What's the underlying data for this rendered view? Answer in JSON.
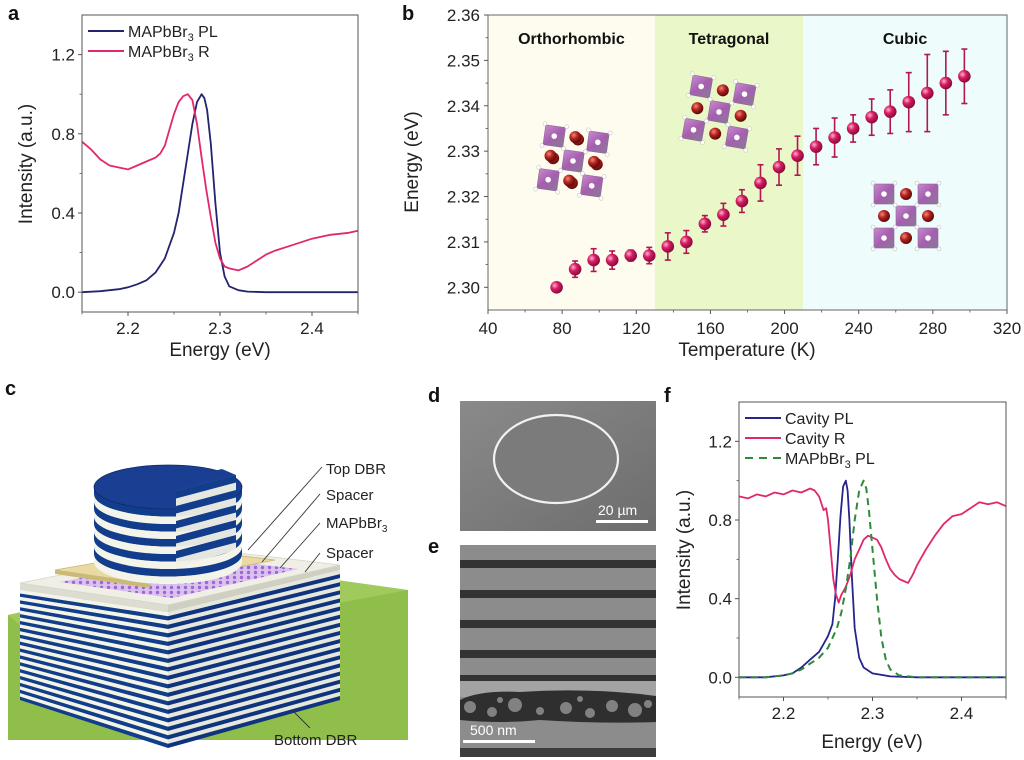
{
  "figure": {
    "panel_letters": [
      "a",
      "b",
      "c",
      "d",
      "e",
      "f"
    ]
  },
  "chart_data": [
    {
      "id": "a",
      "type": "line",
      "title": "",
      "xlabel": "Energy (eV)",
      "ylabel": "Intensity (a.u.)",
      "xlim": [
        2.15,
        2.45
      ],
      "ylim": [
        -0.1,
        1.4
      ],
      "xticks": [
        2.2,
        2.3,
        2.4
      ],
      "xtick_labels": [
        "2.2",
        "2.3",
        "2.4"
      ],
      "yticks": [
        0.0,
        0.4,
        0.8,
        1.2
      ],
      "ytick_labels": [
        "0.0",
        "0.4",
        "0.8",
        "1.2"
      ],
      "legend": {
        "position": "top-left",
        "entries": [
          {
            "label": "MAPbBr3 PL",
            "label_main": "MAPbBr",
            "label_sub": "3",
            "label_tail": " PL",
            "color": "#23236e",
            "style": "solid"
          },
          {
            "label": "MAPbBr3 R",
            "label_main": "MAPbBr",
            "label_sub": "3",
            "label_tail": " R",
            "color": "#e0286e",
            "style": "solid"
          }
        ]
      },
      "series": [
        {
          "name": "MAPbBr3 PL",
          "color": "#23236e",
          "style": "solid",
          "x": [
            2.15,
            2.17,
            2.19,
            2.2,
            2.21,
            2.22,
            2.23,
            2.24,
            2.25,
            2.255,
            2.26,
            2.265,
            2.27,
            2.275,
            2.28,
            2.283,
            2.286,
            2.29,
            2.295,
            2.3,
            2.305,
            2.31,
            2.32,
            2.33,
            2.35,
            2.4,
            2.45
          ],
          "y": [
            0.0,
            0.005,
            0.015,
            0.025,
            0.04,
            0.06,
            0.1,
            0.17,
            0.3,
            0.4,
            0.55,
            0.7,
            0.85,
            0.96,
            1.0,
            0.98,
            0.92,
            0.75,
            0.45,
            0.2,
            0.08,
            0.03,
            0.01,
            0.003,
            0.0,
            0.0,
            0.0
          ]
        },
        {
          "name": "MAPbBr3 R",
          "color": "#e0286e",
          "style": "solid",
          "x": [
            2.15,
            2.16,
            2.17,
            2.18,
            2.19,
            2.2,
            2.21,
            2.22,
            2.23,
            2.235,
            2.24,
            2.245,
            2.25,
            2.255,
            2.26,
            2.265,
            2.27,
            2.275,
            2.28,
            2.285,
            2.29,
            2.295,
            2.3,
            2.305,
            2.31,
            2.32,
            2.33,
            2.34,
            2.35,
            2.36,
            2.38,
            2.4,
            2.42,
            2.44,
            2.45
          ],
          "y": [
            0.76,
            0.72,
            0.67,
            0.64,
            0.63,
            0.62,
            0.64,
            0.66,
            0.68,
            0.7,
            0.74,
            0.82,
            0.9,
            0.96,
            0.99,
            1.0,
            0.97,
            0.85,
            0.68,
            0.52,
            0.38,
            0.25,
            0.17,
            0.13,
            0.12,
            0.11,
            0.13,
            0.16,
            0.19,
            0.21,
            0.24,
            0.27,
            0.29,
            0.3,
            0.31
          ]
        }
      ]
    },
    {
      "id": "b",
      "type": "scatter",
      "title": "",
      "xlabel": "Temperature (K)",
      "ylabel": "Energy (eV)",
      "xlim": [
        40,
        320
      ],
      "ylim": [
        2.295,
        2.36
      ],
      "xticks": [
        40,
        80,
        120,
        160,
        200,
        240,
        280,
        320
      ],
      "xtick_labels": [
        "40",
        "80",
        "120",
        "160",
        "200",
        "240",
        "280",
        "320"
      ],
      "yticks": [
        2.3,
        2.31,
        2.32,
        2.33,
        2.34,
        2.35,
        2.36
      ],
      "ytick_labels": [
        "2.30",
        "2.31",
        "2.32",
        "2.33",
        "2.34",
        "2.35",
        "2.36"
      ],
      "marker_color": "#d81b64",
      "phases": [
        {
          "label": "Orthorhombic",
          "range": [
            40,
            130
          ],
          "color": "#fdfcef"
        },
        {
          "label": "Tetragonal",
          "range": [
            130,
            210
          ],
          "color": "#eaf7c8"
        },
        {
          "label": "Cubic",
          "range": [
            210,
            320
          ],
          "color": "#eefcfc"
        }
      ],
      "series": [
        {
          "name": "Energy vs Temperature",
          "x": [
            77,
            87,
            97,
            107,
            117,
            127,
            137,
            147,
            157,
            167,
            177,
            187,
            197,
            207,
            217,
            227,
            237,
            247,
            257,
            267,
            277,
            287,
            297
          ],
          "y": [
            2.3,
            2.304,
            2.306,
            2.306,
            2.307,
            2.307,
            2.309,
            2.31,
            2.314,
            2.316,
            2.319,
            2.323,
            2.3265,
            2.329,
            2.331,
            2.333,
            2.335,
            2.3375,
            2.3387,
            2.3408,
            2.3428,
            2.345,
            2.3465
          ],
          "err": [
            0,
            0.0018,
            0.0025,
            0.002,
            0.0012,
            0.0018,
            0.003,
            0.0025,
            0.0018,
            0.0025,
            0.0025,
            0.004,
            0.004,
            0.0043,
            0.004,
            0.0043,
            0.003,
            0.004,
            0.0048,
            0.0065,
            0.0085,
            0.007,
            0.006
          ]
        }
      ],
      "insets": [
        {
          "label": "orthorhombic-structure",
          "phase": "Orthorhombic"
        },
        {
          "label": "tetragonal-structure",
          "phase": "Tetragonal"
        },
        {
          "label": "cubic-structure",
          "phase": "Cubic"
        }
      ]
    },
    {
      "id": "f",
      "type": "line",
      "title": "",
      "xlabel": "Energy (eV)",
      "ylabel": "Intensity (a.u.)",
      "xlim": [
        2.15,
        2.45
      ],
      "ylim": [
        -0.1,
        1.4
      ],
      "xticks": [
        2.2,
        2.3,
        2.4
      ],
      "xtick_labels": [
        "2.2",
        "2.3",
        "2.4"
      ],
      "yticks": [
        0.0,
        0.4,
        0.8,
        1.2
      ],
      "ytick_labels": [
        "0.0",
        "0.4",
        "0.8",
        "1.2"
      ],
      "legend": {
        "position": "top-left",
        "entries": [
          {
            "label": "Cavity PL",
            "label_main": "Cavity PL",
            "label_sub": "",
            "label_tail": "",
            "color": "#25258a",
            "style": "solid"
          },
          {
            "label": "Cavity R",
            "label_main": "Cavity R",
            "label_sub": "",
            "label_tail": "",
            "color": "#e0286e",
            "style": "solid"
          },
          {
            "label": "MAPbBr3 PL",
            "label_main": "MAPbBr",
            "label_sub": "3",
            "label_tail": " PL",
            "color": "#2e8b3a",
            "style": "dashed"
          }
        ]
      },
      "series": [
        {
          "name": "Cavity PL",
          "color": "#25258a",
          "style": "solid",
          "x": [
            2.15,
            2.18,
            2.2,
            2.21,
            2.22,
            2.23,
            2.24,
            2.245,
            2.25,
            2.255,
            2.258,
            2.261,
            2.264,
            2.267,
            2.27,
            2.272,
            2.274,
            2.277,
            2.28,
            2.285,
            2.29,
            2.3,
            2.32,
            2.35,
            2.4,
            2.45
          ],
          "y": [
            0.0,
            0.0,
            0.01,
            0.02,
            0.05,
            0.09,
            0.13,
            0.17,
            0.21,
            0.27,
            0.4,
            0.6,
            0.82,
            0.97,
            1.0,
            0.95,
            0.8,
            0.5,
            0.25,
            0.1,
            0.05,
            0.02,
            0.005,
            0.0,
            0.0,
            0.0
          ]
        },
        {
          "name": "Cavity R",
          "color": "#e0286e",
          "style": "solid",
          "x": [
            2.15,
            2.16,
            2.17,
            2.18,
            2.19,
            2.2,
            2.21,
            2.22,
            2.23,
            2.235,
            2.24,
            2.245,
            2.248,
            2.25,
            2.253,
            2.256,
            2.259,
            2.262,
            2.265,
            2.27,
            2.275,
            2.28,
            2.285,
            2.29,
            2.295,
            2.3,
            2.305,
            2.31,
            2.315,
            2.32,
            2.325,
            2.33,
            2.335,
            2.34,
            2.345,
            2.35,
            2.36,
            2.37,
            2.38,
            2.39,
            2.4,
            2.41,
            2.42,
            2.43,
            2.44,
            2.45
          ],
          "y": [
            0.92,
            0.91,
            0.93,
            0.92,
            0.94,
            0.93,
            0.95,
            0.94,
            0.96,
            0.95,
            0.92,
            0.85,
            0.86,
            0.8,
            0.65,
            0.5,
            0.42,
            0.38,
            0.42,
            0.46,
            0.52,
            0.6,
            0.65,
            0.7,
            0.72,
            0.71,
            0.7,
            0.66,
            0.6,
            0.55,
            0.52,
            0.5,
            0.49,
            0.48,
            0.52,
            0.57,
            0.65,
            0.72,
            0.78,
            0.82,
            0.83,
            0.86,
            0.89,
            0.88,
            0.89,
            0.87
          ]
        },
        {
          "name": "MAPbBr3 PL",
          "color": "#2e8b3a",
          "style": "dashed",
          "x": [
            2.15,
            2.18,
            2.2,
            2.21,
            2.22,
            2.23,
            2.24,
            2.25,
            2.26,
            2.265,
            2.27,
            2.275,
            2.28,
            2.285,
            2.29,
            2.293,
            2.296,
            2.3,
            2.305,
            2.31,
            2.315,
            2.32,
            2.33,
            2.35,
            2.4,
            2.45
          ],
          "y": [
            0.0,
            0.0,
            0.01,
            0.02,
            0.04,
            0.07,
            0.1,
            0.15,
            0.25,
            0.33,
            0.45,
            0.6,
            0.8,
            0.95,
            1.0,
            0.96,
            0.85,
            0.65,
            0.4,
            0.2,
            0.09,
            0.04,
            0.01,
            0.0,
            0.0,
            0.0
          ]
        }
      ]
    }
  ],
  "panel_c": {
    "labels": [
      {
        "text_main": "Top DBR",
        "text_sub": "",
        "name": "label-top-dbr"
      },
      {
        "text_main": "Spacer",
        "text_sub": "",
        "name": "label-spacer-top"
      },
      {
        "text_main": "MAPbBr",
        "text_sub": "3",
        "name": "label-mapbbr3"
      },
      {
        "text_main": "Spacer",
        "text_sub": "",
        "name": "label-spacer-bottom"
      },
      {
        "text_main": "Bottom DBR",
        "text_sub": "",
        "name": "label-bottom-dbr"
      }
    ],
    "colors": {
      "dbr_dark": "#123c8c",
      "dbr_light": "#f3f4ea",
      "substrate": "#8fbf4a",
      "spacer_top": "#e9d9a3",
      "perovskite": "#b27ee0"
    }
  },
  "panel_d": {
    "scale_bar": "20 µm"
  },
  "panel_e": {
    "scale_bar": "500 nm"
  }
}
